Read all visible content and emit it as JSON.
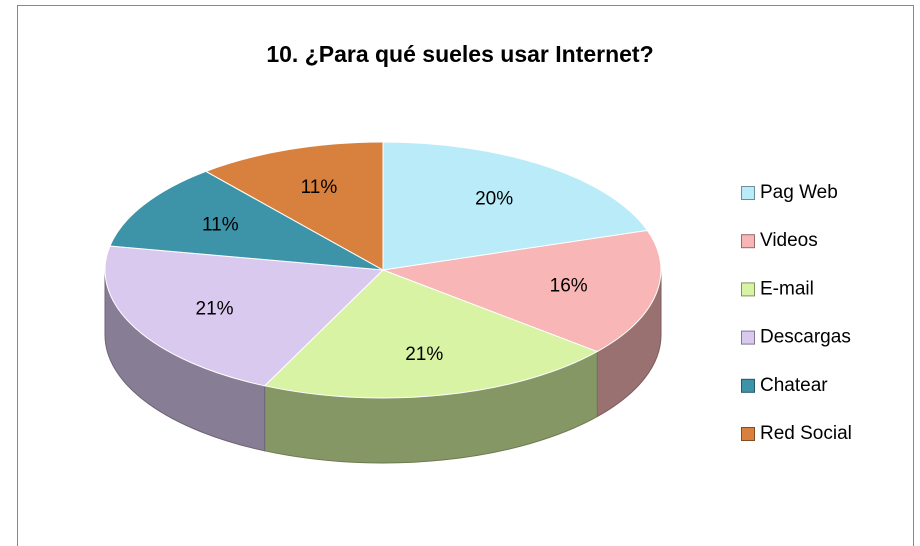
{
  "chart_data": {
    "type": "pie3d",
    "title": "10. ¿Para qué sueles usar Internet?",
    "categories": [
      "Pag Web",
      "Videos",
      "E-mail",
      "Descargas",
      "Chatear",
      "Red Social"
    ],
    "values": [
      20,
      16,
      21,
      21,
      11,
      11
    ],
    "value_labels": [
      "20%",
      "16%",
      "21%",
      "21%",
      "11%",
      "11%"
    ],
    "colors": [
      "#b9ecf8",
      "#f8b6b6",
      "#d8f3a4",
      "#d9c9ee",
      "#3d93a7",
      "#d8813f"
    ],
    "legend": "right"
  }
}
